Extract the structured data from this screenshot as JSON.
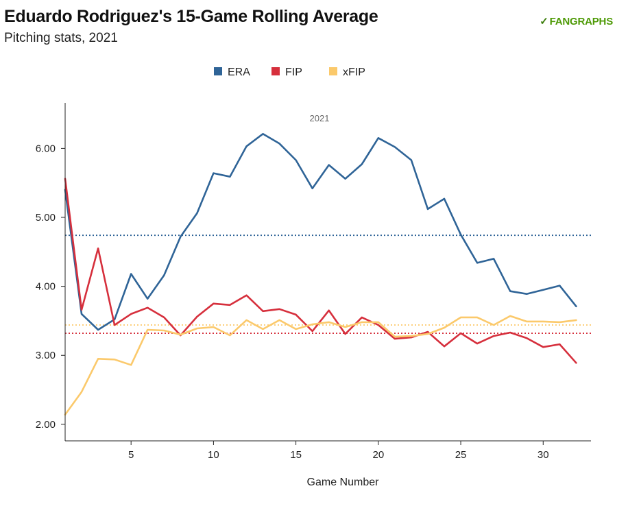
{
  "header": {
    "title": "Eduardo Rodriguez's 15-Game Rolling Average",
    "subtitle": "Pitching stats, 2021",
    "logo_mark": "✓",
    "logo_text": "FANGRAPHS"
  },
  "chart_data": {
    "type": "line",
    "title": "Eduardo Rodriguez's 15-Game Rolling Average",
    "subtitle": "Pitching stats, 2021",
    "xlabel": "Game Number",
    "ylabel": "",
    "annotation": "2021",
    "xlim": [
      1,
      32.9
    ],
    "ylim": [
      1.76,
      6.66
    ],
    "xticks": [
      5,
      10,
      15,
      20,
      25,
      30
    ],
    "yticks": [
      2,
      3,
      4,
      5,
      6
    ],
    "ytick_labels": [
      "2.00",
      "3.00",
      "4.00",
      "5.00",
      "6.00"
    ],
    "legend_position": "top-center",
    "x": [
      1,
      2,
      3,
      4,
      5,
      6,
      7,
      8,
      9,
      10,
      11,
      12,
      13,
      14,
      15,
      16,
      17,
      18,
      19,
      20,
      21,
      22,
      23,
      24,
      25,
      26,
      27,
      28,
      29,
      30,
      31,
      32
    ],
    "series": [
      {
        "name": "ERA",
        "color": "#2f6497",
        "values": [
          5.4,
          3.6,
          3.37,
          3.52,
          4.18,
          3.82,
          4.16,
          4.72,
          5.06,
          5.64,
          5.59,
          6.03,
          6.21,
          6.07,
          5.83,
          5.42,
          5.76,
          5.56,
          5.77,
          6.15,
          6.02,
          5.83,
          5.12,
          5.27,
          4.75,
          4.34,
          4.4,
          3.93,
          3.89,
          3.95,
          4.01,
          3.71
        ],
        "average": 4.74
      },
      {
        "name": "FIP",
        "color": "#d62f3c",
        "values": [
          5.56,
          3.66,
          4.55,
          3.44,
          3.6,
          3.69,
          3.55,
          3.29,
          3.56,
          3.75,
          3.73,
          3.87,
          3.64,
          3.67,
          3.59,
          3.35,
          3.65,
          3.31,
          3.55,
          3.44,
          3.24,
          3.26,
          3.34,
          3.13,
          3.32,
          3.17,
          3.28,
          3.33,
          3.25,
          3.12,
          3.16,
          2.89
        ],
        "average": 3.32
      },
      {
        "name": "xFIP",
        "color": "#fbc96b",
        "values": [
          2.14,
          2.47,
          2.95,
          2.94,
          2.86,
          3.37,
          3.36,
          3.3,
          3.39,
          3.41,
          3.29,
          3.51,
          3.38,
          3.51,
          3.38,
          3.45,
          3.48,
          3.41,
          3.48,
          3.48,
          3.27,
          3.28,
          3.31,
          3.4,
          3.55,
          3.55,
          3.44,
          3.57,
          3.49,
          3.49,
          3.48,
          3.51
        ],
        "average": 3.44
      }
    ]
  }
}
